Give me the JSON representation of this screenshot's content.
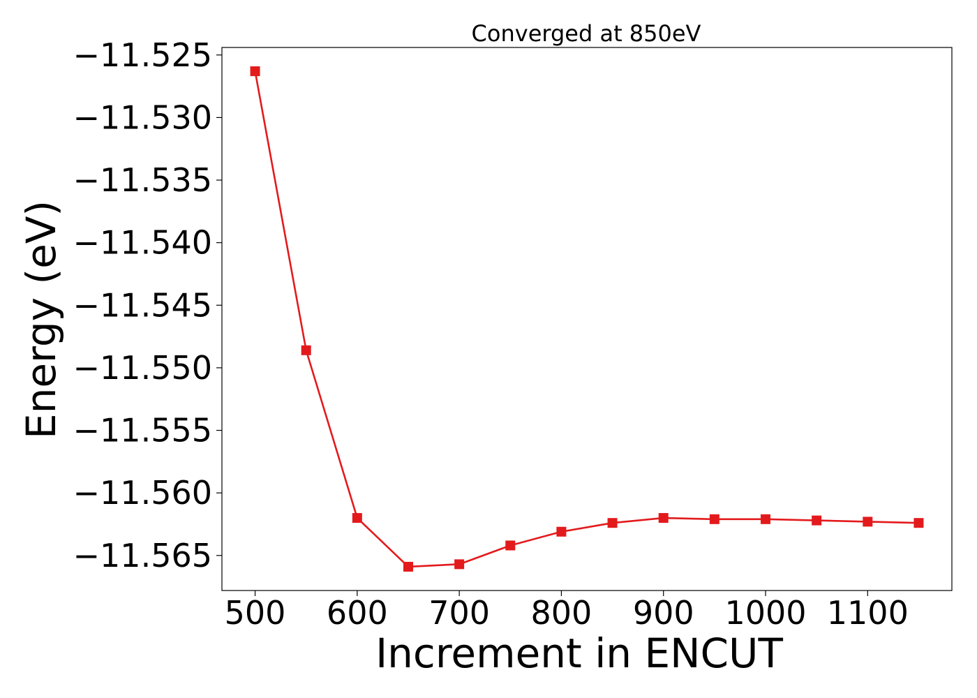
{
  "chart_data": {
    "type": "line",
    "title": "Converged at 850eV",
    "xlabel": "Increment in ENCUT",
    "ylabel": "Energy (eV)",
    "xlim": [
      467.5,
      1182.5
    ],
    "ylim": [
      -11.5678,
      -11.5244
    ],
    "xticks": [
      500,
      600,
      700,
      800,
      900,
      1000,
      1100
    ],
    "xtick_labels": [
      "500",
      "600",
      "700",
      "800",
      "900",
      "1000",
      "1100"
    ],
    "yticks": [
      -11.525,
      -11.53,
      -11.535,
      -11.54,
      -11.545,
      -11.55,
      -11.555,
      -11.56,
      -11.565
    ],
    "ytick_labels": [
      "−11.525",
      "−11.530",
      "−11.535",
      "−11.540",
      "−11.545",
      "−11.550",
      "−11.555",
      "−11.560",
      "−11.565"
    ],
    "grid": false,
    "series": [
      {
        "color": "#e31a1c",
        "marker": "square",
        "x": [
          500,
          550,
          600,
          650,
          700,
          750,
          800,
          850,
          900,
          950,
          1000,
          1050,
          1100,
          1150
        ],
        "y": [
          -11.5263,
          -11.5486,
          -11.562,
          -11.5659,
          -11.5657,
          -11.5642,
          -11.5631,
          -11.5624,
          -11.562,
          -11.5621,
          -11.5621,
          -11.5622,
          -11.5623,
          -11.5624
        ]
      }
    ]
  }
}
